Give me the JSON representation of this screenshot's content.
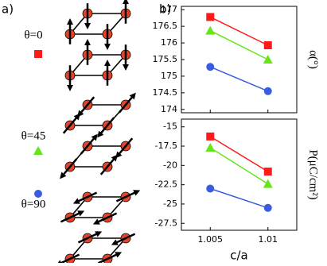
{
  "panel_a_label": "a)",
  "panel_b_label": "b)",
  "chart_data": [
    {
      "type": "line",
      "ylabel": "α(°)",
      "x": [
        1.005,
        1.01
      ],
      "xlim": [
        1.0025,
        1.0125
      ],
      "ylim": [
        173.9,
        177.1
      ],
      "yticks": [
        174,
        174.5,
        175,
        175.5,
        176,
        176.5,
        177
      ],
      "series": [
        {
          "name": "θ=0",
          "color": "#ff1a1a",
          "marker": "square",
          "values": [
            176.78,
            175.93
          ]
        },
        {
          "name": "θ=45",
          "color": "#66e61a",
          "marker": "triangle",
          "values": [
            176.37,
            175.5
          ]
        },
        {
          "name": "θ=90",
          "color": "#3a5de0",
          "marker": "circle",
          "values": [
            175.28,
            174.55
          ]
        }
      ]
    },
    {
      "type": "line",
      "ylabel": "P(μC/cm²)",
      "xlabel": "c/a",
      "x": [
        1.005,
        1.01
      ],
      "xlim": [
        1.0025,
        1.0125
      ],
      "xticks": [
        1.005,
        1.01
      ],
      "ylim": [
        -28.4,
        -14
      ],
      "yticks": [
        -15,
        -17.5,
        -20,
        -22.5,
        -25,
        -27.5
      ],
      "series": [
        {
          "color": "#ff1a1a",
          "marker": "square",
          "values": [
            -16.25,
            -20.8
          ]
        },
        {
          "color": "#66e61a",
          "marker": "triangle",
          "values": [
            -17.7,
            -22.4
          ]
        },
        {
          "color": "#3a5de0",
          "marker": "circle",
          "values": [
            -23.0,
            -25.5
          ]
        }
      ]
    }
  ]
}
